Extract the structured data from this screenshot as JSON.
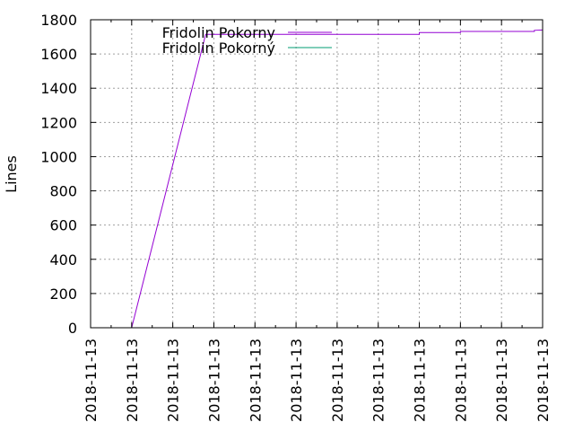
{
  "chart_data": {
    "type": "line",
    "title": "",
    "xlabel": "",
    "ylabel": "Lines",
    "ylim": [
      0,
      1800
    ],
    "yticks": [
      0,
      200,
      400,
      600,
      800,
      1000,
      1200,
      1400,
      1600,
      1800
    ],
    "xlim": [
      0,
      11
    ],
    "xtick_labels": [
      "2018-11-13",
      "2018-11-13",
      "2018-11-13",
      "2018-11-13",
      "2018-11-13",
      "2018-11-13",
      "2018-11-13",
      "2018-11-13",
      "2018-11-13",
      "2018-11-13",
      "2018-11-13",
      "2018-11-13"
    ],
    "grid": true,
    "legend_position": "top-center",
    "series": [
      {
        "name": "Fridolin Pokorny",
        "color": "#9400d3",
        "x": [
          1.0,
          2.8,
          8.0,
          8.0,
          9.0,
          9.0,
          10.8,
          10.8,
          11.0
        ],
        "y": [
          0,
          1715,
          1715,
          1725,
          1725,
          1732,
          1732,
          1738,
          1740
        ]
      },
      {
        "name": "Fridolin Pokorný",
        "color": "#009e73",
        "x": [],
        "y": []
      }
    ]
  }
}
